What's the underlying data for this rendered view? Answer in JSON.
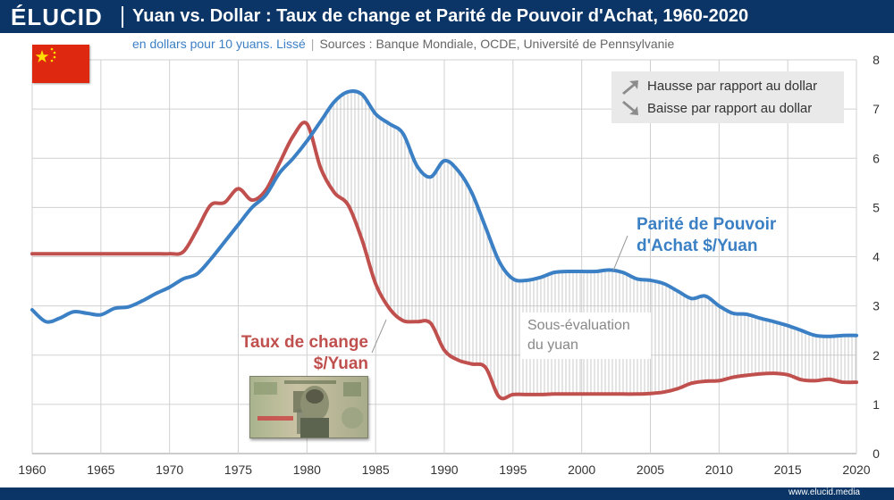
{
  "header": {
    "logo": "ÉLUCID",
    "title": "Yuan vs. Dollar : Taux de change et Parité de Pouvoir d'Achat, 1960-2020"
  },
  "subtitle": {
    "unit": "en dollars pour 10 yuans. Lissé",
    "sep": "|",
    "sources": "Sources : Banque Mondiale, OCDE, Université de Pennsylvanie"
  },
  "legend": {
    "up": "Hausse par rapport au dollar",
    "down": "Baisse par rapport au dollar",
    "up_icon": "arrow-up-right-icon",
    "down_icon": "arrow-down-right-icon"
  },
  "annotations": {
    "ppa_line1": "Parité de Pouvoir",
    "ppa_line2": "d'Achat $/Yuan",
    "tc_line1": "Taux de change",
    "tc_line2": "$/Yuan",
    "gap_line1": "Sous-évaluation",
    "gap_line2": "du yuan"
  },
  "footer": {
    "url": "www.elucid.media"
  },
  "colors": {
    "header_bg": "#0a3566",
    "ppa": "#3b7fc4",
    "exchange_rate": "#c0504d",
    "flag": "#de2910",
    "grid": "#d0d0d0"
  },
  "chart_data": {
    "type": "line",
    "title": "Yuan vs. Dollar : Taux de change et Parité de Pouvoir d'Achat, 1960-2020",
    "subtitle": "en dollars pour 10 yuans. Lissé",
    "xlim": [
      1960,
      2020
    ],
    "ylim": [
      0,
      8
    ],
    "x_ticks": [
      1960,
      1965,
      1970,
      1975,
      1980,
      1985,
      1990,
      1995,
      2000,
      2005,
      2010,
      2015,
      2020
    ],
    "y_ticks": [
      0,
      1,
      2,
      3,
      4,
      5,
      6,
      7,
      8
    ],
    "grid": true,
    "y_axis_side": "right",
    "series": [
      {
        "name": "Parité de Pouvoir d'Achat $/Yuan",
        "color": "#3b7fc4",
        "x": [
          1960,
          1961,
          1962,
          1963,
          1964,
          1965,
          1966,
          1967,
          1968,
          1969,
          1970,
          1971,
          1972,
          1973,
          1974,
          1975,
          1976,
          1977,
          1978,
          1979,
          1980,
          1981,
          1982,
          1983,
          1984,
          1985,
          1986,
          1987,
          1988,
          1989,
          1990,
          1991,
          1992,
          1993,
          1994,
          1995,
          1996,
          1997,
          1998,
          1999,
          2000,
          2001,
          2002,
          2003,
          2004,
          2005,
          2006,
          2007,
          2008,
          2009,
          2010,
          2011,
          2012,
          2013,
          2014,
          2015,
          2016,
          2017,
          2018,
          2019,
          2020
        ],
        "values": [
          2.92,
          2.68,
          2.75,
          2.88,
          2.85,
          2.82,
          2.95,
          2.98,
          3.1,
          3.25,
          3.38,
          3.55,
          3.65,
          3.95,
          4.3,
          4.65,
          5.0,
          5.25,
          5.7,
          6.0,
          6.35,
          6.75,
          7.15,
          7.35,
          7.3,
          6.9,
          6.7,
          6.5,
          5.85,
          5.62,
          5.95,
          5.75,
          5.3,
          4.6,
          3.9,
          3.55,
          3.52,
          3.58,
          3.68,
          3.7,
          3.7,
          3.7,
          3.73,
          3.68,
          3.55,
          3.52,
          3.45,
          3.3,
          3.15,
          3.2,
          3.0,
          2.85,
          2.83,
          2.75,
          2.68,
          2.6,
          2.5,
          2.4,
          2.38,
          2.4,
          2.4
        ]
      },
      {
        "name": "Taux de change $/Yuan",
        "color": "#c0504d",
        "x": [
          1960,
          1961,
          1962,
          1963,
          1964,
          1965,
          1966,
          1967,
          1968,
          1969,
          1970,
          1971,
          1972,
          1973,
          1974,
          1975,
          1976,
          1977,
          1978,
          1979,
          1980,
          1981,
          1982,
          1983,
          1984,
          1985,
          1986,
          1987,
          1988,
          1989,
          1990,
          1991,
          1992,
          1993,
          1994,
          1995,
          1996,
          1997,
          1998,
          1999,
          2000,
          2001,
          2002,
          2003,
          2004,
          2005,
          2006,
          2007,
          2008,
          2009,
          2010,
          2011,
          2012,
          2013,
          2014,
          2015,
          2016,
          2017,
          2018,
          2019,
          2020
        ],
        "values": [
          4.06,
          4.06,
          4.06,
          4.06,
          4.06,
          4.06,
          4.06,
          4.06,
          4.06,
          4.06,
          4.06,
          4.1,
          4.55,
          5.05,
          5.1,
          5.38,
          5.15,
          5.35,
          5.9,
          6.45,
          6.7,
          5.8,
          5.3,
          5.05,
          4.35,
          3.45,
          2.95,
          2.7,
          2.68,
          2.65,
          2.1,
          1.9,
          1.82,
          1.75,
          1.15,
          1.2,
          1.2,
          1.2,
          1.21,
          1.21,
          1.21,
          1.21,
          1.21,
          1.21,
          1.21,
          1.22,
          1.25,
          1.32,
          1.43,
          1.47,
          1.48,
          1.55,
          1.59,
          1.62,
          1.63,
          1.6,
          1.5,
          1.48,
          1.51,
          1.45,
          1.45
        ]
      }
    ]
  }
}
